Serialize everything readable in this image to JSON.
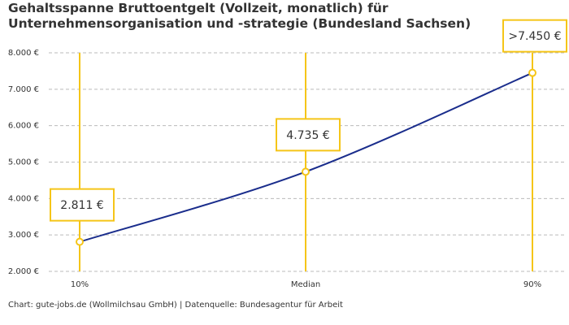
{
  "chart_data": {
    "type": "line",
    "title": "Gehaltsspanne Bruttoentgelt (Vollzeit, monatlich) für Unternehmensorganisation und -strategie (Bundesland Sachsen)",
    "source": "Chart: gute-jobs.de (Wollmilchsau GmbH) | Datenquelle: Bundesagentur für Arbeit",
    "categories": [
      "10%",
      "Median",
      "90%"
    ],
    "series": [
      {
        "name": "Gehalt",
        "color": "#1a2d8c",
        "values": [
          2811,
          4735,
          7450
        ],
        "value_labels": [
          "2.811 €",
          "4.735 €",
          ">7.450 €"
        ]
      }
    ],
    "marker_color": "#f5c518",
    "ylim": [
      2000,
      8000
    ],
    "yticks": [
      {
        "value": 2000,
        "label": "2.000 €"
      },
      {
        "value": 3000,
        "label": "3.000 €"
      },
      {
        "value": 4000,
        "label": "4.000 €"
      },
      {
        "value": 5000,
        "label": "5.000 €"
      },
      {
        "value": 6000,
        "label": "6.000 €"
      },
      {
        "value": 7000,
        "label": "7.000 €"
      },
      {
        "value": 8000,
        "label": "8.000 €"
      }
    ],
    "grid": true
  }
}
